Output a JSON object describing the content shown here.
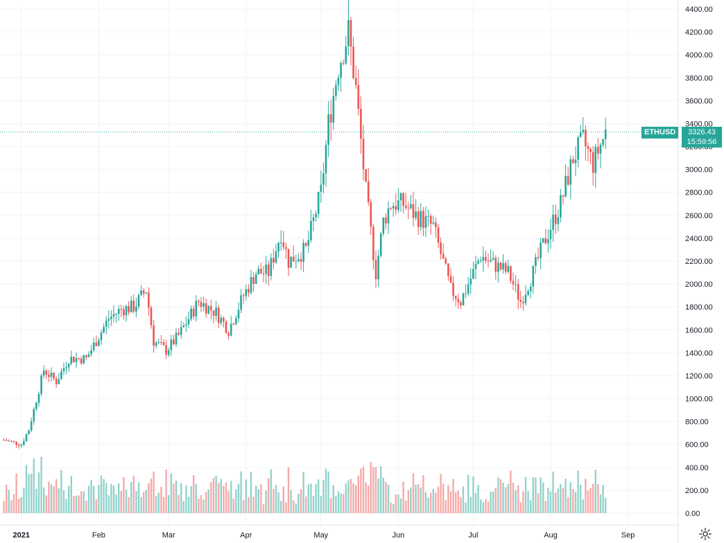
{
  "chart_data": {
    "type": "candlestick",
    "symbol": "ETHUSD",
    "last_price": "3326.43",
    "countdown": "15:59:56",
    "ylim": [
      0,
      4400
    ],
    "y_ticks": [
      "4400.00",
      "4200.00",
      "4000.00",
      "3800.00",
      "3600.00",
      "3400.00",
      "3200.00",
      "3000.00",
      "2800.00",
      "2600.00",
      "2400.00",
      "2200.00",
      "2000.00",
      "1800.00",
      "1600.00",
      "1400.00",
      "1200.00",
      "1000.00",
      "800.00",
      "600.00",
      "400.00",
      "200.00",
      "0.00"
    ],
    "x_ticks": [
      "2021",
      "Feb",
      "Mar",
      "Apr",
      "May",
      "Jun",
      "Jul",
      "Aug",
      "Sep"
    ],
    "colors": {
      "up": "#26a69a",
      "down": "#ef5350",
      "up_vol": "#92d2cc",
      "down_vol": "#f7a9a7",
      "grid": "#f0f3fa",
      "axis_text": "#131722"
    },
    "series": [
      {
        "name": "price_path",
        "x": [
          "2020-12-25",
          "2021-01-01",
          "2021-01-04",
          "2021-01-10",
          "2021-01-15",
          "2021-01-20",
          "2021-01-27",
          "2021-02-05",
          "2021-02-10",
          "2021-02-15",
          "2021-02-20",
          "2021-02-23",
          "2021-02-28",
          "2021-03-05",
          "2021-03-13",
          "2021-03-20",
          "2021-03-25",
          "2021-03-31",
          "2021-04-05",
          "2021-04-10",
          "2021-04-15",
          "2021-04-18",
          "2021-04-25",
          "2021-05-01",
          "2021-05-04",
          "2021-05-08",
          "2021-05-12",
          "2021-05-15",
          "2021-05-19",
          "2021-05-23",
          "2021-05-26",
          "2021-05-29",
          "2021-06-03",
          "2021-06-08",
          "2021-06-15",
          "2021-06-22",
          "2021-06-26",
          "2021-07-04",
          "2021-07-07",
          "2021-07-15",
          "2021-07-20",
          "2021-07-25",
          "2021-07-30",
          "2021-08-05",
          "2021-08-10",
          "2021-08-14",
          "2021-08-18",
          "2021-08-23"
        ],
        "values": [
          640,
          600,
          730,
          1250,
          1150,
          1350,
          1350,
          1700,
          1780,
          1800,
          1950,
          1500,
          1420,
          1550,
          1850,
          1750,
          1600,
          1900,
          2100,
          2100,
          2450,
          2200,
          2300,
          2800,
          3400,
          3900,
          4200,
          3700,
          2800,
          2100,
          2550,
          2700,
          2700,
          2600,
          2500,
          1950,
          1850,
          2250,
          2200,
          2100,
          1850,
          2100,
          2400,
          2700,
          3100,
          3250,
          3050,
          3326
        ]
      }
    ],
    "volume": {
      "max": 1200,
      "note": "scaled 0-1200 in price units"
    }
  }
}
